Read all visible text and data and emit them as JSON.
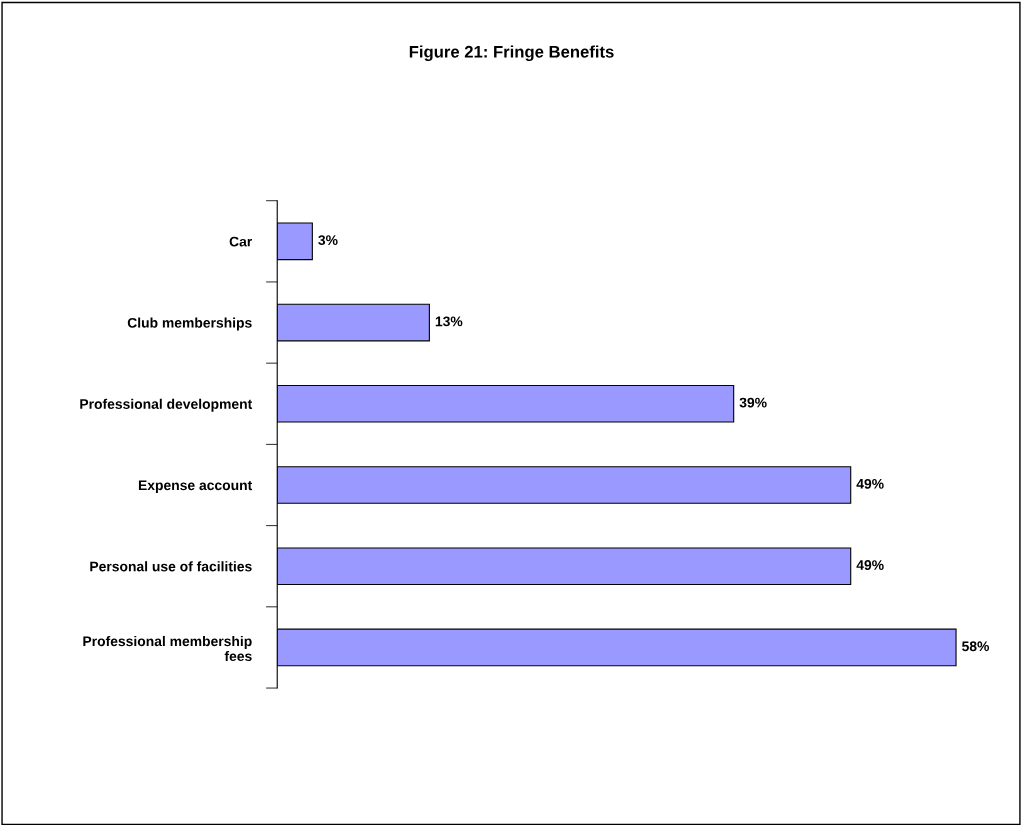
{
  "chart_data": {
    "type": "bar",
    "orientation": "horizontal",
    "title": "Figure 21: Fringe Benefits",
    "categories": [
      "Car",
      "Club memberships",
      "Professional development",
      "Expense account",
      "Personal use of facilities",
      "Professional membership\nfees"
    ],
    "values": [
      3,
      13,
      39,
      49,
      49,
      58
    ],
    "value_labels": [
      "3%",
      "13%",
      "39%",
      "49%",
      "49%",
      "58%"
    ],
    "color": "#9999ff",
    "grid": false,
    "legend": false
  }
}
